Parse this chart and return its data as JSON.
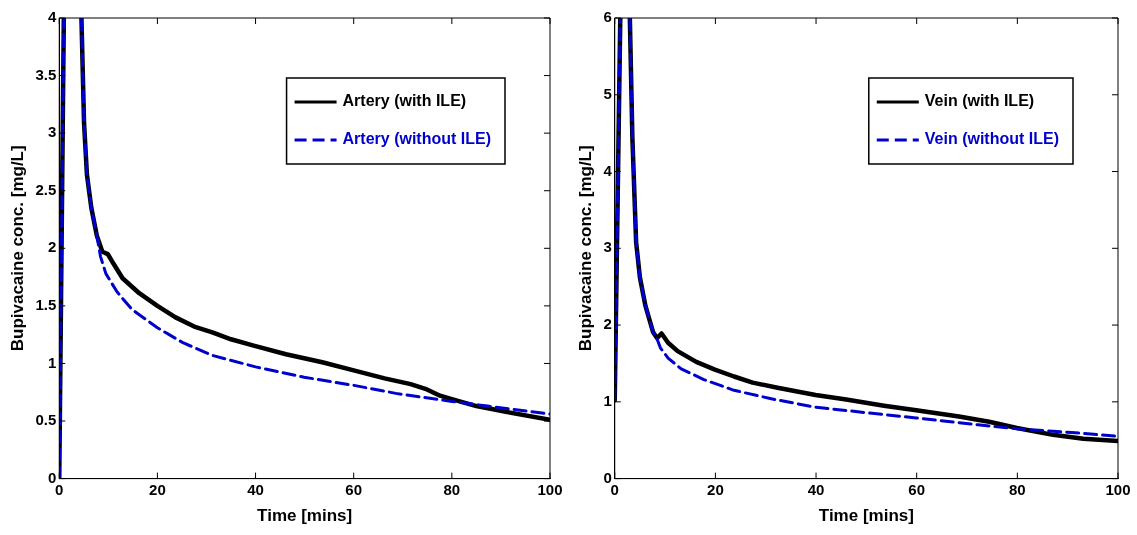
{
  "chart_data": [
    {
      "type": "line",
      "xlabel": "Time [mins]",
      "ylabel": "Bupivacaine conc. [mg/L]",
      "xlim": [
        0,
        100
      ],
      "ylim": [
        0,
        4
      ],
      "xticks": [
        0,
        20,
        40,
        60,
        80,
        100
      ],
      "yticks": [
        0,
        0.5,
        1,
        1.5,
        2,
        2.5,
        3,
        3.5,
        4
      ],
      "grid": false,
      "legend": "top right",
      "marker": "none",
      "series": [
        {
          "name": "Artery (with ILE)",
          "color": "#000000",
          "line_style": "solid",
          "x": [
            0,
            0.93,
            2.7,
            4.52,
            5.05,
            5.64,
            6.54,
            7.66,
            8.78,
            9.9,
            11.0,
            12.9,
            16.3,
            20,
            23.7,
            27.5,
            31.2,
            35,
            40,
            46.2,
            53.6,
            60,
            66.3,
            71.6,
            74.6,
            77.6,
            80,
            85,
            91,
            100
          ],
          "values": [
            0,
            4,
            null,
            4,
            3.09,
            2.64,
            2.35,
            2.11,
            1.97,
            1.95,
            1.87,
            1.74,
            1.61,
            1.5,
            1.4,
            1.32,
            1.27,
            1.21,
            1.15,
            1.08,
            1.01,
            0.94,
            0.87,
            0.82,
            0.78,
            0.72,
            0.69,
            0.63,
            0.58,
            0.51
          ]
        },
        {
          "name": "Artery (without ILE)",
          "color": "#0000cc",
          "line_style": "dashed",
          "x": [
            0,
            0.93,
            2.7,
            4.52,
            5.05,
            5.64,
            6.54,
            7.66,
            8.4,
            9.5,
            11.8,
            14.8,
            20,
            25.2,
            31.2,
            40,
            49.9,
            60,
            68.6,
            80,
            87.3,
            100
          ],
          "values": [
            0,
            4,
            null,
            4,
            3.09,
            2.64,
            2.35,
            2.11,
            1.93,
            1.78,
            1.62,
            1.47,
            1.31,
            1.18,
            1.07,
            0.97,
            0.88,
            0.81,
            0.74,
            0.67,
            0.63,
            0.56
          ]
        }
      ]
    },
    {
      "type": "line",
      "xlabel": "Time [mins]",
      "ylabel": "Bupivacaine conc. [mg/L]",
      "xlim": [
        0,
        100
      ],
      "ylim": [
        0,
        6
      ],
      "xticks": [
        0,
        20,
        40,
        60,
        80,
        100
      ],
      "yticks": [
        0,
        1,
        2,
        3,
        4,
        5,
        6
      ],
      "grid": false,
      "legend": "top right",
      "marker": "none",
      "series": [
        {
          "name": "Vein (with ILE)",
          "color": "#000000",
          "line_style": "solid",
          "x": [
            0,
            1.1,
            2,
            3.0,
            3.5,
            4.25,
            5.0,
            6.1,
            7.6,
            8.4,
            9.3,
            10.6,
            12.5,
            16.2,
            19.9,
            23.7,
            27.4,
            32.6,
            39.9,
            46,
            53.5,
            59.9,
            68.4,
            74.4,
            79.9,
            87.1,
            93.1,
            100
          ],
          "values": [
            1.02,
            6,
            null,
            6,
            4.45,
            3.08,
            2.62,
            2.25,
            1.91,
            1.83,
            1.89,
            1.77,
            1.66,
            1.52,
            1.42,
            1.33,
            1.25,
            1.18,
            1.09,
            1.03,
            0.95,
            0.89,
            0.81,
            0.74,
            0.66,
            0.57,
            0.52,
            0.49
          ]
        },
        {
          "name": "Vein (without ILE)",
          "color": "#0000cc",
          "line_style": "dashed",
          "x": [
            0,
            1.1,
            2,
            3.0,
            3.5,
            4.25,
            5.0,
            6.1,
            7.6,
            8.4,
            9.1,
            10.6,
            13.2,
            17.7,
            23.7,
            31.1,
            39.9,
            49.8,
            59.9,
            72.2,
            79.9,
            90.8,
            100
          ],
          "values": [
            1.02,
            6,
            null,
            6,
            4.45,
            3.08,
            2.62,
            2.25,
            1.91,
            1.82,
            1.7,
            1.57,
            1.43,
            1.29,
            1.15,
            1.04,
            0.93,
            0.86,
            0.79,
            0.7,
            0.65,
            0.6,
            0.55
          ]
        }
      ]
    }
  ]
}
